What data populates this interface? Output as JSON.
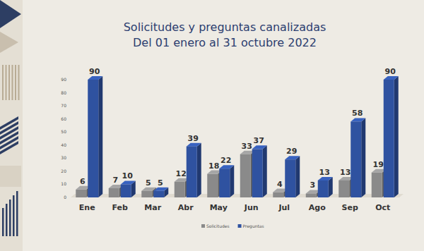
{
  "chart_data": {
    "type": "bar",
    "title": "Solicitudes y preguntas canalizadas",
    "subtitle": "Del 01 enero al 31 octubre 2022",
    "categories": [
      "Ene",
      "Feb",
      "Mar",
      "Abr",
      "May",
      "Jun",
      "Jul",
      "Ago",
      "Sep",
      "Oct"
    ],
    "series": [
      {
        "name": "Solicitudes",
        "color": "#8a8a8a",
        "values": [
          6,
          7,
          5,
          12,
          18,
          33,
          4,
          3,
          13,
          19
        ]
      },
      {
        "name": "Preguntas",
        "color": "#2f52a0",
        "values": [
          90,
          10,
          5,
          39,
          22,
          37,
          29,
          13,
          58,
          90
        ]
      }
    ],
    "ylim": [
      0,
      90
    ],
    "yticks": [
      0,
      10,
      20,
      30,
      40,
      50,
      60,
      70,
      80,
      90
    ],
    "grid": false,
    "legend": "bottom",
    "data_labels": true
  }
}
